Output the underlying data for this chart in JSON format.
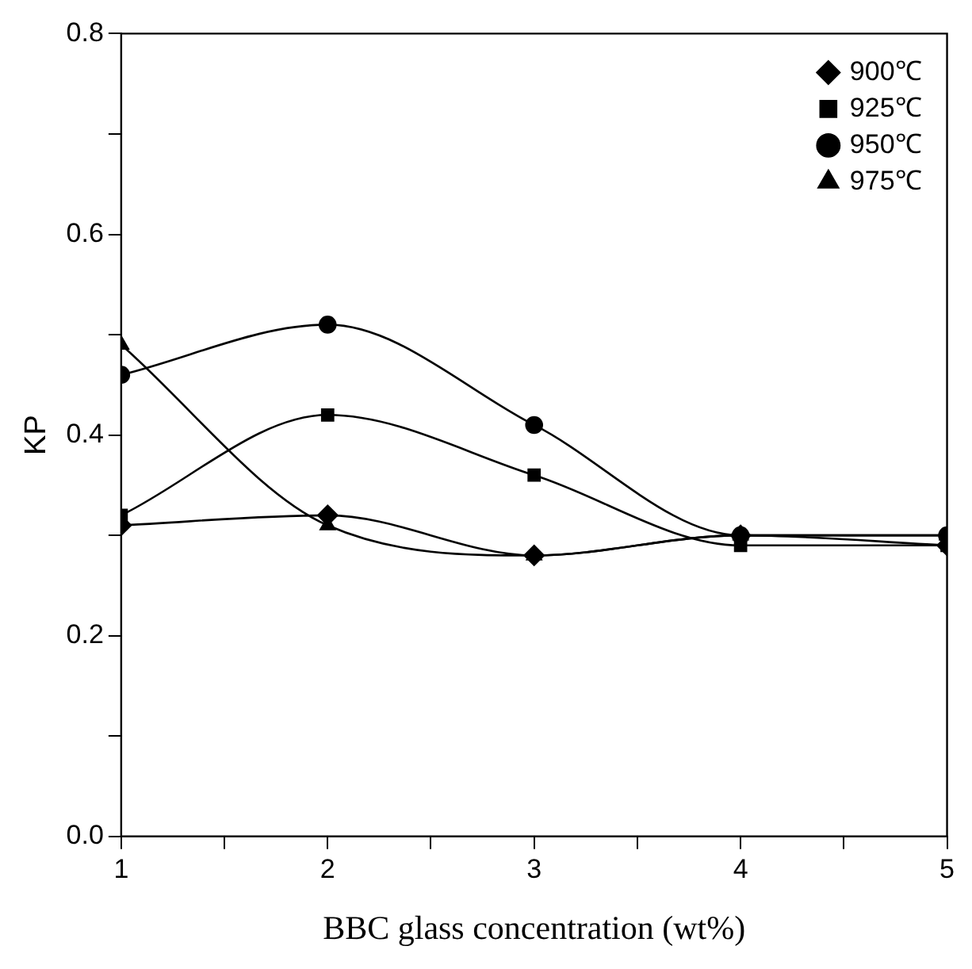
{
  "chart_data": {
    "type": "line",
    "xlabel": "BBC glass concentration (wt%)",
    "ylabel": "KP",
    "x": [
      1,
      2,
      3,
      4,
      5
    ],
    "series": [
      {
        "name": "900℃",
        "color": "#000000",
        "marker": "diamond",
        "values": [
          0.31,
          0.32,
          0.28,
          0.3,
          0.29
        ]
      },
      {
        "name": "925℃",
        "color": "#000000",
        "marker": "square",
        "values": [
          0.32,
          0.42,
          0.36,
          0.29,
          0.29
        ]
      },
      {
        "name": "950℃",
        "color": "#000000",
        "marker": "circle",
        "values": [
          0.46,
          0.51,
          0.41,
          0.3,
          0.3
        ]
      },
      {
        "name": "975℃",
        "color": "#000000",
        "marker": "triangle",
        "values": [
          0.49,
          0.31,
          0.28,
          0.3,
          0.3
        ]
      }
    ],
    "xlim": [
      1,
      5
    ],
    "xticks": [
      1,
      {
        "value": 1.5,
        "label": null
      },
      2,
      {
        "value": 2.5,
        "label": null
      },
      3,
      {
        "value": 3.5,
        "label": null
      },
      4,
      {
        "value": 4.5,
        "label": null
      },
      5
    ],
    "ylim": [
      0,
      0.8
    ],
    "yticks": [
      {
        "value": 0,
        "label": "0.0"
      },
      {
        "value": 0.1,
        "label": null
      },
      {
        "value": 0.2,
        "label": "0.2"
      },
      {
        "value": 0.3,
        "label": null
      },
      {
        "value": 0.4,
        "label": "0.4"
      },
      {
        "value": 0.5,
        "label": null
      },
      {
        "value": 0.6,
        "label": "0.6"
      },
      {
        "value": 0.7,
        "label": null
      },
      {
        "value": 0.8,
        "label": "0.8"
      }
    ],
    "grid": false,
    "legend": "top right",
    "line_style": "solid"
  }
}
